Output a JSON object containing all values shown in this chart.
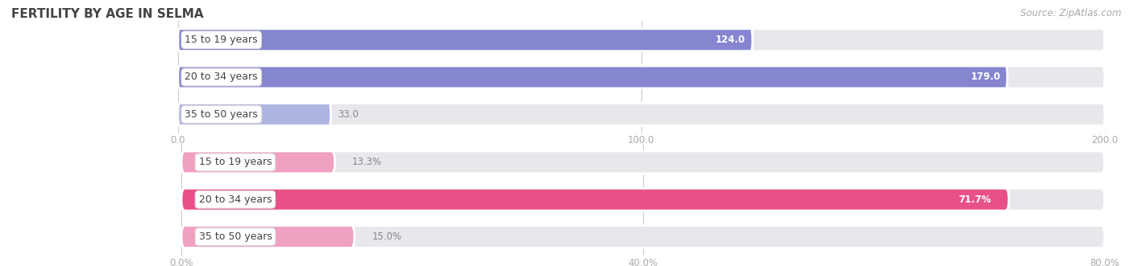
{
  "title": "FERTILITY BY AGE IN SELMA",
  "source": "Source: ZipAtlas.com",
  "top_section": {
    "categories": [
      "15 to 19 years",
      "20 to 34 years",
      "35 to 50 years"
    ],
    "values": [
      124.0,
      179.0,
      33.0
    ],
    "xmax": 200.0,
    "xticks": [
      0.0,
      100.0,
      200.0
    ],
    "xtick_labels": [
      "0.0",
      "100.0",
      "200.0"
    ],
    "bar_color_main": "#8585d0",
    "bar_color_light": "#b0b4e0",
    "value_label_threshold": 0.2
  },
  "bottom_section": {
    "categories": [
      "15 to 19 years",
      "20 to 34 years",
      "35 to 50 years"
    ],
    "values": [
      13.3,
      71.7,
      15.0
    ],
    "xmax": 80.0,
    "xticks": [
      0.0,
      40.0,
      80.0
    ],
    "xtick_labels": [
      "0.0%",
      "40.0%",
      "80.0%"
    ],
    "bar_color_main": "#e8508a",
    "bar_color_light": "#f0a0c0",
    "value_label_threshold": 0.2
  },
  "bg_color": "#ffffff",
  "bar_track_color": "#e8e8ec",
  "bar_separator_color": "#ffffff",
  "grid_line_color": "#cccccc",
  "cat_label_color": "#444444",
  "value_label_color_inside": "#ffffff",
  "value_label_color_outside": "#888888",
  "tick_label_color": "#aaaaaa",
  "title_color": "#444444",
  "source_color": "#aaaaaa",
  "title_fontsize": 11,
  "label_fontsize": 8.5,
  "tick_fontsize": 8.5,
  "source_fontsize": 8.5,
  "cat_label_fontsize": 9,
  "bar_height": 0.6,
  "bar_gap": 0.4
}
